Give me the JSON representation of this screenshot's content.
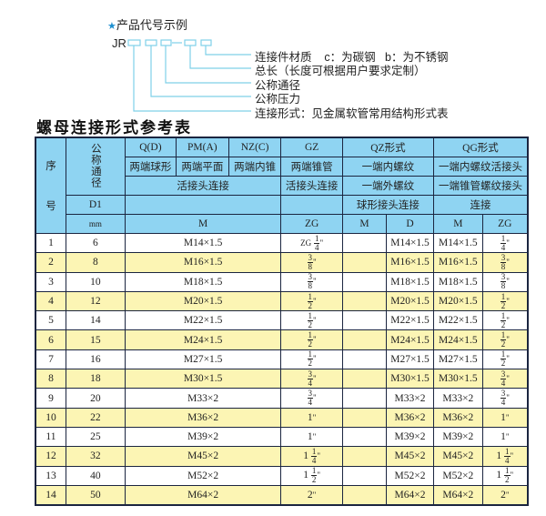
{
  "legend": {
    "title": "产品代号示例",
    "star_icon": "star",
    "code_prefix": "JR",
    "labels": [
      "连接件材质    c：为碳钢   b：为不锈钢",
      "总长（长度可根据用户要求定制）",
      "公称通径",
      "公称压力",
      "连接形式：见金属软管常用结构形式表"
    ],
    "line_color": "#7fd0e8"
  },
  "table_title": "螺母连接形式参考表",
  "colors": {
    "header_bg": "#8fd4f2",
    "alt_row_bg": "#fcf5b4",
    "border": "#1b2540"
  },
  "header": {
    "seq_top": "序",
    "seq_bottom": "号",
    "dn": "公称通径",
    "d1": "D1",
    "mm": "mm",
    "row1": [
      "Q(D)",
      "PM(A)",
      "NZ(C)",
      "GZ",
      "QZ形式",
      "QG形式"
    ],
    "row2": [
      "两端球形",
      "两端平面",
      "两端内锥",
      "两端锥管",
      "一端内螺纹",
      "一端内螺纹活接头"
    ],
    "row3": [
      "活接头连接",
      "活接头连接",
      "一端外螺纹",
      "一端锥管螺纹接头"
    ],
    "row4": [
      "",
      "",
      "球形接头连接",
      "连接"
    ],
    "row5": [
      "M",
      "ZG",
      "M",
      "D",
      "M",
      "ZG"
    ]
  },
  "rows": [
    {
      "no": "1",
      "d1": "6",
      "m": "M14×1.5",
      "zg": {
        "pre": "ZG",
        "whole": "",
        "num": "1",
        "den": "4"
      },
      "qz_m": "",
      "qz_d": "M14×1.5",
      "qg_m": "M14×1.5",
      "qg_zg": {
        "whole": "",
        "num": "1",
        "den": "4"
      }
    },
    {
      "no": "2",
      "d1": "8",
      "m": "M16×1.5",
      "zg": {
        "pre": "",
        "whole": "",
        "num": "3",
        "den": "8"
      },
      "qz_m": "",
      "qz_d": "M16×1.5",
      "qg_m": "M16×1.5",
      "qg_zg": {
        "whole": "",
        "num": "3",
        "den": "8"
      }
    },
    {
      "no": "3",
      "d1": "10",
      "m": "M18×1.5",
      "zg": {
        "pre": "",
        "whole": "",
        "num": "3",
        "den": "8"
      },
      "qz_m": "",
      "qz_d": "M18×1.5",
      "qg_m": "M18×1.5",
      "qg_zg": {
        "whole": "",
        "num": "3",
        "den": "8"
      }
    },
    {
      "no": "4",
      "d1": "12",
      "m": "M20×1.5",
      "zg": {
        "pre": "",
        "whole": "",
        "num": "1",
        "den": "2"
      },
      "qz_m": "",
      "qz_d": "M20×1.5",
      "qg_m": "M20×1.5",
      "qg_zg": {
        "whole": "",
        "num": "1",
        "den": "2"
      }
    },
    {
      "no": "5",
      "d1": "14",
      "m": "M22×1.5",
      "zg": {
        "pre": "",
        "whole": "",
        "num": "1",
        "den": "2"
      },
      "qz_m": "",
      "qz_d": "M22×1.5",
      "qg_m": "M22×1.5",
      "qg_zg": {
        "whole": "",
        "num": "1",
        "den": "2"
      }
    },
    {
      "no": "6",
      "d1": "15",
      "m": "M24×1.5",
      "zg": {
        "pre": "",
        "whole": "",
        "num": "1",
        "den": "2"
      },
      "qz_m": "",
      "qz_d": "M24×1.5",
      "qg_m": "M24×1.5",
      "qg_zg": {
        "whole": "",
        "num": "1",
        "den": "2"
      }
    },
    {
      "no": "7",
      "d1": "16",
      "m": "M27×1.5",
      "zg": {
        "pre": "",
        "whole": "",
        "num": "1",
        "den": "2"
      },
      "qz_m": "",
      "qz_d": "M27×1.5",
      "qg_m": "M27×1.5",
      "qg_zg": {
        "whole": "",
        "num": "1",
        "den": "2"
      }
    },
    {
      "no": "8",
      "d1": "18",
      "m": "M30×1.5",
      "zg": {
        "pre": "",
        "whole": "",
        "num": "3",
        "den": "4"
      },
      "qz_m": "",
      "qz_d": "M30×1.5",
      "qg_m": "M30×1.5",
      "qg_zg": {
        "whole": "",
        "num": "3",
        "den": "4"
      }
    },
    {
      "no": "9",
      "d1": "20",
      "m": "M33×2",
      "zg": {
        "pre": "",
        "whole": "",
        "num": "3",
        "den": "4"
      },
      "qz_m": "",
      "qz_d": "M33×2",
      "qg_m": "M33×2",
      "qg_zg": {
        "whole": "",
        "num": "3",
        "den": "4"
      }
    },
    {
      "no": "10",
      "d1": "22",
      "m": "M36×2",
      "zg": {
        "pre": "",
        "whole": "1",
        "num": "",
        "den": ""
      },
      "qz_m": "",
      "qz_d": "M36×2",
      "qg_m": "M36×2",
      "qg_zg": {
        "whole": "1",
        "num": "",
        "den": ""
      }
    },
    {
      "no": "11",
      "d1": "25",
      "m": "M39×2",
      "zg": {
        "pre": "",
        "whole": "1",
        "num": "",
        "den": ""
      },
      "qz_m": "",
      "qz_d": "M39×2",
      "qg_m": "M39×2",
      "qg_zg": {
        "whole": "1",
        "num": "",
        "den": ""
      }
    },
    {
      "no": "12",
      "d1": "32",
      "m": "M45×2",
      "zg": {
        "pre": "",
        "whole": "1",
        "num": "1",
        "den": "4"
      },
      "qz_m": "",
      "qz_d": "M45×2",
      "qg_m": "M45×2",
      "qg_zg": {
        "whole": "1",
        "num": "1",
        "den": "4"
      }
    },
    {
      "no": "13",
      "d1": "40",
      "m": "M52×2",
      "zg": {
        "pre": "",
        "whole": "1",
        "num": "1",
        "den": "2"
      },
      "qz_m": "",
      "qz_d": "M52×2",
      "qg_m": "M52×2",
      "qg_zg": {
        "whole": "1",
        "num": "1",
        "den": "2"
      }
    },
    {
      "no": "14",
      "d1": "50",
      "m": "M64×2",
      "zg": {
        "pre": "",
        "whole": "2",
        "num": "",
        "den": ""
      },
      "qz_m": "",
      "qz_d": "M64×2",
      "qg_m": "M64×2",
      "qg_zg": {
        "whole": "2",
        "num": "",
        "den": ""
      }
    }
  ]
}
